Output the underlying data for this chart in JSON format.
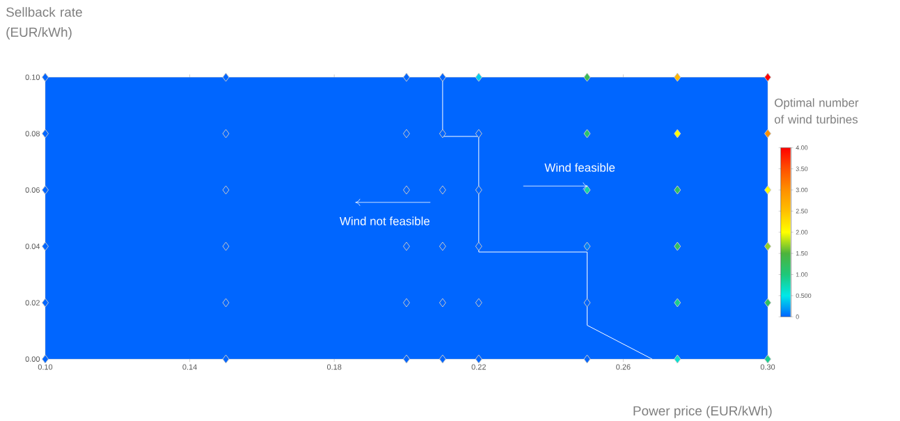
{
  "chart_data": {
    "type": "scatter",
    "xlabel": "Power price (EUR/kWh)",
    "ylabel": "Sellback rate (EUR/kWh)",
    "clabel": "Optimal number of wind turbines",
    "xlim": [
      0.1,
      0.3
    ],
    "ylim": [
      0,
      0.1
    ],
    "xticks": [
      {
        "value": 0.1,
        "label": "0.10"
      },
      {
        "value": 0.14,
        "label": "0.14"
      },
      {
        "value": 0.18,
        "label": "0.18"
      },
      {
        "value": 0.22,
        "label": "0.22"
      },
      {
        "value": 0.26,
        "label": "0.26"
      },
      {
        "value": 0.3,
        "label": "0.30"
      }
    ],
    "yticks": [
      {
        "value": 0,
        "label": "0.00"
      },
      {
        "value": 0.02,
        "label": "0.02"
      },
      {
        "value": 0.04,
        "label": "0.04"
      },
      {
        "value": 0.06,
        "label": "0.06"
      },
      {
        "value": 0.08,
        "label": "0.08"
      },
      {
        "value": 0.1,
        "label": "0.10"
      }
    ],
    "clim": [
      0,
      4
    ],
    "cticks": [
      {
        "value": 0,
        "label": "0"
      },
      {
        "value": 0.5,
        "label": "0.500"
      },
      {
        "value": 1,
        "label": "1.00"
      },
      {
        "value": 1.5,
        "label": "1.50"
      },
      {
        "value": 2,
        "label": "2.00"
      },
      {
        "value": 2.5,
        "label": "2.50"
      },
      {
        "value": 3,
        "label": "3.00"
      },
      {
        "value": 3.5,
        "label": "3.50"
      },
      {
        "value": 4,
        "label": "4.00"
      }
    ],
    "marker": "diamond",
    "annotations": [
      "Wind not feasible",
      "Wind feasible"
    ],
    "series": [
      {
        "color": "#c8c8c8",
        "x": [
          0.1,
          0.15,
          0.2,
          0.21,
          0.22,
          0.25,
          0.275,
          0.3,
          0.1,
          0.15,
          0.2,
          0.21,
          0.22,
          0.25,
          0.275,
          0.3,
          0.1,
          0.15,
          0.2,
          0.21,
          0.22,
          0.25,
          0.275,
          0.3,
          0.1,
          0.15,
          0.2,
          0.21,
          0.22,
          0.25,
          0.275,
          0.3,
          0.1,
          0.15,
          0.2,
          0.21,
          0.22,
          0.25,
          0.275,
          0.3,
          0.1,
          0.15,
          0.2,
          0.21,
          0.22,
          0.25,
          0.275,
          0.3
        ],
        "values": [
          0,
          0,
          0,
          0,
          0,
          0,
          0,
          0,
          0.02,
          0.02,
          0.02,
          0.02,
          0.02,
          0.02,
          0.02,
          0.02,
          0.04,
          0.04,
          0.04,
          0.04,
          0.04,
          0.04,
          0.04,
          0.04,
          0.06,
          0.06,
          0.06,
          0.06,
          0.06,
          0.06,
          0.06,
          0.06,
          0.08,
          0.08,
          0.08,
          0.08,
          0.08,
          0.08,
          0.08,
          0.08,
          0.1,
          0.1,
          0.1,
          0.1,
          0.1,
          0.1,
          0.1,
          0.1
        ],
        "cvalues": [
          0,
          0,
          0,
          0,
          0,
          0,
          0.6,
          0.9,
          0,
          0,
          0,
          0,
          0,
          0,
          0.9,
          1.2,
          0,
          0,
          0,
          0,
          0,
          0.1,
          1.2,
          1.7,
          0,
          0,
          0,
          0,
          0,
          0.8,
          1.2,
          2,
          0,
          0,
          0,
          0,
          0,
          1.1,
          2,
          3,
          0,
          0,
          0,
          0,
          0.4,
          1.3,
          2.6,
          4
        ]
      },
      {
        "type": "line",
        "marker": "none",
        "color": "#ffffff",
        "x": [
          0.21,
          0.21,
          0.22,
          0.22,
          0.25,
          0.25,
          0.268
        ],
        "values": [
          0.1,
          0.079,
          0.079,
          0.038,
          0.038,
          0.012,
          0
        ]
      }
    ]
  }
}
